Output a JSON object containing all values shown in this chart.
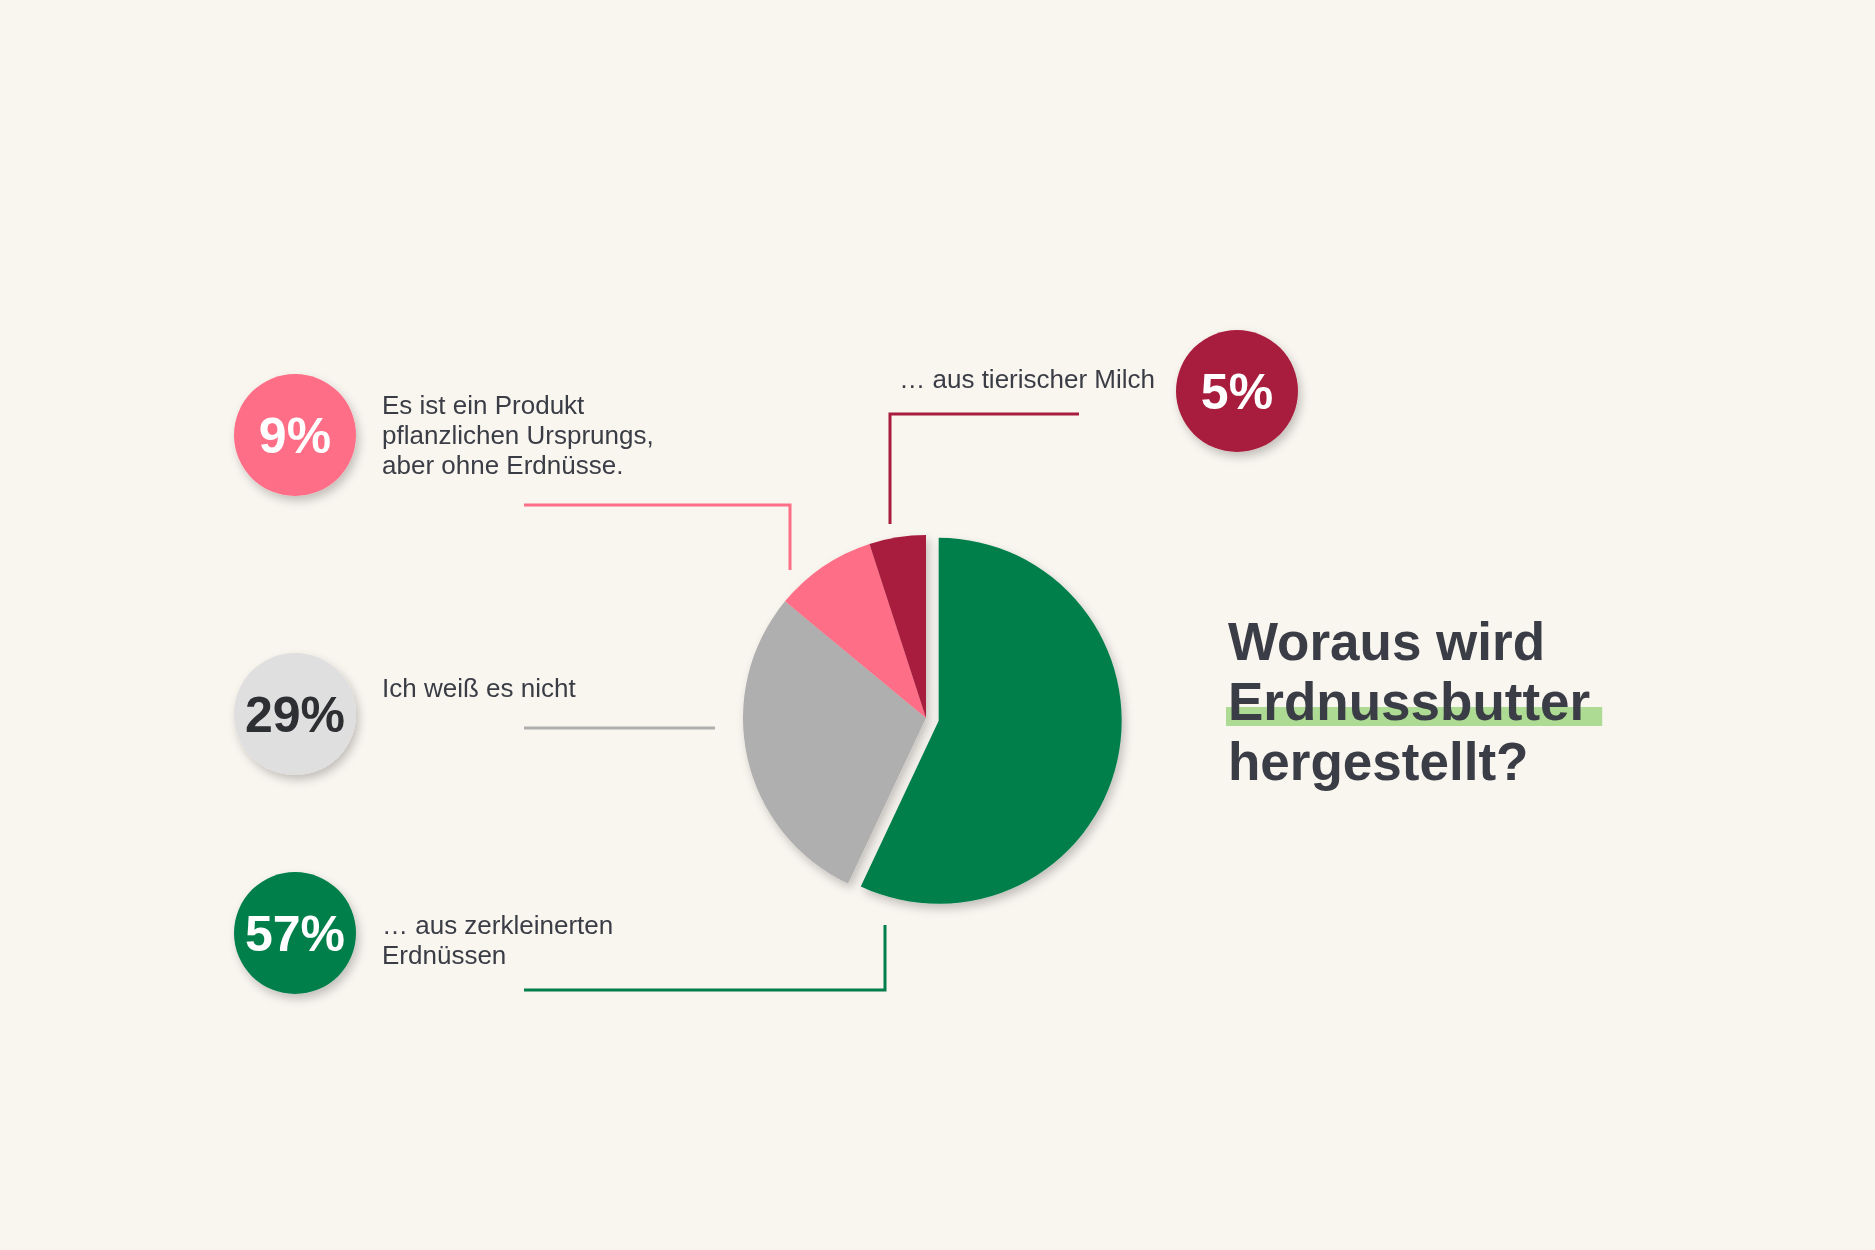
{
  "chart_data": {
    "type": "pie",
    "title": "Woraus wird Erdnussbutter hergestellt?",
    "categories": [
      "… aus zerkleinerten Erdnüssen",
      "Ich weiß es nicht",
      "Es ist ein Produkt pflanzlichen Ursprungs, aber ohne Erdnüsse.",
      "… aus tierischer Milch"
    ],
    "values": [
      57,
      29,
      9,
      5
    ],
    "colors": [
      "#017f4b",
      "#afafaf",
      "#fe6e86",
      "#a81c3d"
    ],
    "value_labels": [
      "57%",
      "29%",
      "9%",
      "5%"
    ]
  }
}
